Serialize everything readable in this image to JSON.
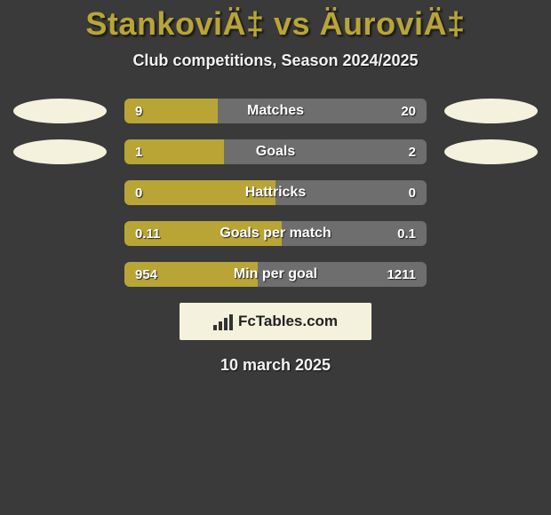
{
  "title": "StankoviÄ‡ vs ÄuroviÄ‡",
  "subtitle": "Club competitions, Season 2024/2025",
  "date": "10 march 2025",
  "colors": {
    "background": "#3a3a3a",
    "accent": "#b8a536",
    "bubble": "#f4f1dd",
    "bar_left": "#b8a536",
    "bar_right": "#6e6e6e",
    "text_light": "#ffffff"
  },
  "brand": {
    "text": "FcTables.com",
    "icon": "bars-icon"
  },
  "stats": [
    {
      "label": "Matches",
      "left_value": "9",
      "right_value": "20",
      "left_pct": 31,
      "right_pct": 69,
      "show_bubbles": true
    },
    {
      "label": "Goals",
      "left_value": "1",
      "right_value": "2",
      "left_pct": 33,
      "right_pct": 67,
      "show_bubbles": true
    },
    {
      "label": "Hattricks",
      "left_value": "0",
      "right_value": "0",
      "left_pct": 50,
      "right_pct": 50,
      "show_bubbles": false
    },
    {
      "label": "Goals per match",
      "left_value": "0.11",
      "right_value": "0.1",
      "left_pct": 52,
      "right_pct": 48,
      "show_bubbles": false
    },
    {
      "label": "Min per goal",
      "left_value": "954",
      "right_value": "1211",
      "left_pct": 44,
      "right_pct": 56,
      "show_bubbles": false
    }
  ]
}
